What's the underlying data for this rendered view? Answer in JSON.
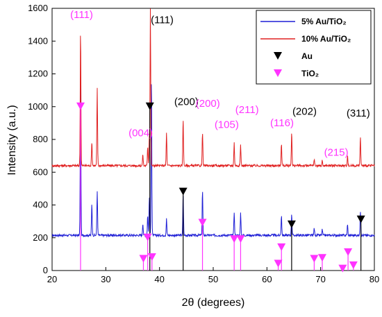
{
  "chart_data": {
    "type": "line",
    "xlabel": "2θ (degrees)",
    "ylabel": "Intensity (a.u.)",
    "xlim": [
      20,
      80
    ],
    "ylim": [
      0,
      1600
    ],
    "xticks": [
      20,
      30,
      40,
      50,
      60,
      70,
      80
    ],
    "yticks": [
      0,
      200,
      400,
      600,
      800,
      1000,
      1200,
      1400,
      1600
    ],
    "grid": false,
    "legend_position": "top-right",
    "series": [
      {
        "name": "5% Au/TiO₂",
        "color": "#1f1fd6",
        "baseline": 215,
        "peaks": [
          [
            25.3,
            1190
          ],
          [
            27.4,
            410
          ],
          [
            28.4,
            490
          ],
          [
            36.9,
            290
          ],
          [
            37.8,
            340
          ],
          [
            38.1,
            450
          ],
          [
            38.5,
            1190
          ],
          [
            41.3,
            315
          ],
          [
            44.4,
            470
          ],
          [
            48.0,
            490
          ],
          [
            53.9,
            360
          ],
          [
            55.1,
            350
          ],
          [
            62.7,
            340
          ],
          [
            64.6,
            350
          ],
          [
            68.8,
            260
          ],
          [
            70.3,
            250
          ],
          [
            75.0,
            280
          ],
          [
            77.4,
            370
          ]
        ]
      },
      {
        "name": "10% Au/TiO₂",
        "color": "#e02020",
        "baseline": 640,
        "peaks": [
          [
            25.3,
            1480
          ],
          [
            27.4,
            790
          ],
          [
            28.4,
            1110
          ],
          [
            36.9,
            710
          ],
          [
            37.8,
            760
          ],
          [
            38.1,
            820
          ],
          [
            38.3,
            1600
          ],
          [
            41.3,
            840
          ],
          [
            44.4,
            930
          ],
          [
            48.0,
            850
          ],
          [
            53.9,
            780
          ],
          [
            55.1,
            770
          ],
          [
            62.7,
            780
          ],
          [
            64.6,
            850
          ],
          [
            68.8,
            680
          ],
          [
            70.3,
            670
          ],
          [
            75.0,
            700
          ],
          [
            77.4,
            820
          ]
        ]
      }
    ],
    "references": [
      {
        "name": "Au",
        "color": "#000000",
        "marker": "triangle-down",
        "positions": [
          [
            38.2,
            1000
          ],
          [
            44.4,
            480
          ],
          [
            64.6,
            280
          ],
          [
            77.5,
            310
          ]
        ]
      },
      {
        "name": "TiO₂",
        "color": "#ff33ff",
        "marker": "triangle-down",
        "positions": [
          [
            25.3,
            1000
          ],
          [
            37.0,
            70
          ],
          [
            37.8,
            200
          ],
          [
            38.6,
            80
          ],
          [
            48.0,
            290
          ],
          [
            53.9,
            190
          ],
          [
            55.1,
            190
          ],
          [
            62.1,
            40
          ],
          [
            62.7,
            140
          ],
          [
            68.8,
            70
          ],
          [
            70.3,
            75
          ],
          [
            74.1,
            10
          ],
          [
            75.1,
            110
          ],
          [
            76.1,
            30
          ]
        ]
      }
    ],
    "annotations": [
      {
        "text": "(111)",
        "x": 25.5,
        "y": 1540,
        "color": "#ff33ff"
      },
      {
        "text": "(111)",
        "x": 40.5,
        "y": 1510,
        "color": "#000000"
      },
      {
        "text": "(200)",
        "x": 45.0,
        "y": 1010,
        "color": "#000000"
      },
      {
        "text": "(004)",
        "x": 36.5,
        "y": 820,
        "color": "#ff33ff"
      },
      {
        "text": "(200)",
        "x": 49.0,
        "y": 1000,
        "color": "#ff33ff"
      },
      {
        "text": "(105)",
        "x": 52.5,
        "y": 870,
        "color": "#ff33ff"
      },
      {
        "text": "(211)",
        "x": 56.3,
        "y": 960,
        "color": "#ff33ff"
      },
      {
        "text": "(116)",
        "x": 62.8,
        "y": 880,
        "color": "#ff33ff"
      },
      {
        "text": "(202)",
        "x": 67.0,
        "y": 950,
        "color": "#000000"
      },
      {
        "text": "(215)",
        "x": 72.9,
        "y": 700,
        "color": "#ff33ff"
      },
      {
        "text": "(311)",
        "x": 77.0,
        "y": 940,
        "color": "#000000"
      }
    ]
  }
}
